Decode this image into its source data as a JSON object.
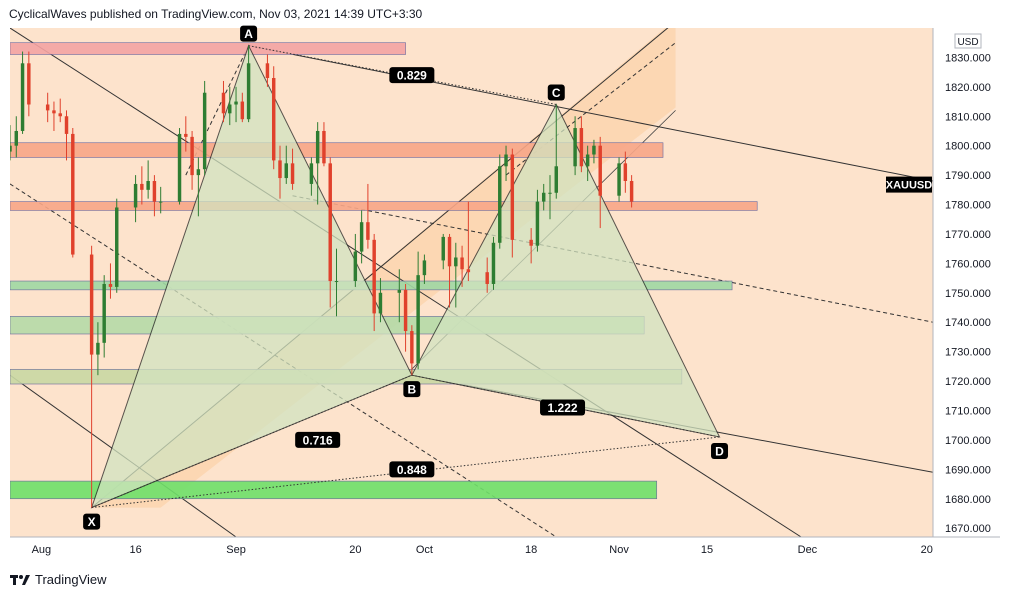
{
  "header": {
    "publish_line": "CyclicalWaves published on TradingView.com, Nov 03, 2021 14:39 UTC+3:30"
  },
  "footer": {
    "brand": "TradingView"
  },
  "chart_data": {
    "type": "candlestick",
    "symbol": "XAUUSD",
    "currency": "USD",
    "ylim": [
      1667,
      1840
    ],
    "y_ticks": [
      1670,
      1680,
      1690,
      1700,
      1710,
      1720,
      1730,
      1740,
      1750,
      1760,
      1770,
      1780,
      1790,
      1800,
      1810,
      1820,
      1830
    ],
    "y_tick_labels": [
      "1670.000",
      "1680.000",
      "1690.000",
      "1700.000",
      "1710.000",
      "1720.000",
      "1730.000",
      "1740.000",
      "1750.000",
      "1760.000",
      "1770.000",
      "1780.000",
      "1790.000",
      "1800.000",
      "1810.000",
      "1820.000",
      "1830.000"
    ],
    "x_range": [
      "2021-07-27",
      "2021-12-21"
    ],
    "x_ticks": [
      {
        "date": "2021-08-01",
        "label": "Aug"
      },
      {
        "date": "2021-08-16",
        "label": "16"
      },
      {
        "date": "2021-09-01",
        "label": "Sep"
      },
      {
        "date": "2021-09-20",
        "label": "20"
      },
      {
        "date": "2021-10-01",
        "label": "Oct"
      },
      {
        "date": "2021-10-18",
        "label": "18"
      },
      {
        "date": "2021-11-01",
        "label": "Nov"
      },
      {
        "date": "2021-11-15",
        "label": "15"
      },
      {
        "date": "2021-12-01",
        "label": "Dec"
      },
      {
        "date": "2021-12-20",
        "label": "20"
      }
    ],
    "last_price_label": "XAUUSD",
    "last_price": 1781,
    "harmonic_points": [
      {
        "label": "X",
        "date": "2021-08-09",
        "price": 1677
      },
      {
        "label": "A",
        "date": "2021-09-03",
        "price": 1834
      },
      {
        "label": "B",
        "date": "2021-09-29",
        "price": 1722
      },
      {
        "label": "C",
        "date": "2021-10-22",
        "price": 1814
      },
      {
        "label": "D",
        "date": "2021-11-17",
        "price": 1701
      }
    ],
    "ratios": [
      {
        "value": "0.829",
        "date": "2021-09-29",
        "price": 1824
      },
      {
        "value": "0.716",
        "date": "2021-09-14",
        "price": 1700
      },
      {
        "value": "1.222",
        "date": "2021-10-23",
        "price": 1711
      },
      {
        "value": "0.848",
        "date": "2021-09-29",
        "price": 1690
      }
    ],
    "zones": [
      {
        "from_date": "2021-07-27",
        "to_date": "2021-09-28",
        "low": 1831,
        "high": 1835,
        "color": "#f4a4a4"
      },
      {
        "from_date": "2021-07-27",
        "to_date": "2021-11-08",
        "low": 1796,
        "high": 1801,
        "color": "#f8a788"
      },
      {
        "from_date": "2021-07-27",
        "to_date": "2021-11-23",
        "low": 1778,
        "high": 1781,
        "color": "#f8a788"
      },
      {
        "from_date": "2021-07-27",
        "to_date": "2021-11-19",
        "low": 1751,
        "high": 1754,
        "color": "#9fd8a4"
      },
      {
        "from_date": "2021-07-27",
        "to_date": "2021-11-05",
        "low": 1736,
        "high": 1742,
        "color": "#b5dba8"
      },
      {
        "from_date": "2021-07-27",
        "to_date": "2021-11-11",
        "low": 1719,
        "high": 1724,
        "color": "#c9d9a4"
      },
      {
        "from_date": "2021-07-27",
        "to_date": "2021-11-07",
        "low": 1680,
        "high": 1686,
        "color": "#6fe06a"
      }
    ],
    "candles": [
      [
        "2021-07-27",
        1798,
        1807,
        1795,
        1800
      ],
      [
        "2021-07-28",
        1800,
        1810,
        1796,
        1805
      ],
      [
        "2021-07-29",
        1805,
        1832,
        1804,
        1828
      ],
      [
        "2021-07-30",
        1828,
        1832,
        1810,
        1814
      ],
      [
        "2021-08-02",
        1814,
        1818,
        1808,
        1812
      ],
      [
        "2021-08-03",
        1812,
        1815,
        1805,
        1811
      ],
      [
        "2021-08-04",
        1811,
        1816,
        1808,
        1810
      ],
      [
        "2021-08-05",
        1810,
        1812,
        1795,
        1804
      ],
      [
        "2021-08-06",
        1804,
        1806,
        1762,
        1763
      ],
      [
        "2021-08-09",
        1763,
        1766,
        1677,
        1729
      ],
      [
        "2021-08-10",
        1729,
        1740,
        1722,
        1733
      ],
      [
        "2021-08-11",
        1733,
        1756,
        1728,
        1753
      ],
      [
        "2021-08-12",
        1753,
        1760,
        1748,
        1752
      ],
      [
        "2021-08-13",
        1752,
        1782,
        1750,
        1779
      ],
      [
        "2021-08-16",
        1779,
        1790,
        1774,
        1787
      ],
      [
        "2021-08-17",
        1787,
        1793,
        1780,
        1785
      ],
      [
        "2021-08-18",
        1785,
        1795,
        1782,
        1788
      ],
      [
        "2021-08-19",
        1788,
        1790,
        1776,
        1781
      ],
      [
        "2021-08-20",
        1781,
        1786,
        1777,
        1781
      ],
      [
        "2021-08-23",
        1781,
        1806,
        1780,
        1804
      ],
      [
        "2021-08-24",
        1804,
        1810,
        1798,
        1803
      ],
      [
        "2021-08-25",
        1803,
        1805,
        1785,
        1790
      ],
      [
        "2021-08-26",
        1790,
        1796,
        1776,
        1792
      ],
      [
        "2021-08-27",
        1792,
        1822,
        1790,
        1818
      ],
      [
        "2021-08-30",
        1818,
        1822,
        1808,
        1811
      ],
      [
        "2021-08-31",
        1811,
        1820,
        1807,
        1814
      ],
      [
        "2021-09-01",
        1814,
        1820,
        1808,
        1815
      ],
      [
        "2021-09-02",
        1815,
        1818,
        1808,
        1809
      ],
      [
        "2021-09-03",
        1809,
        1834,
        1808,
        1828
      ],
      [
        "2021-09-06",
        1828,
        1831,
        1820,
        1823
      ],
      [
        "2021-09-07",
        1823,
        1827,
        1792,
        1795
      ],
      [
        "2021-09-08",
        1795,
        1800,
        1782,
        1789
      ],
      [
        "2021-09-09",
        1789,
        1800,
        1787,
        1794
      ],
      [
        "2021-09-10",
        1794,
        1799,
        1785,
        1787
      ],
      [
        "2021-09-13",
        1787,
        1796,
        1783,
        1794
      ],
      [
        "2021-09-14",
        1794,
        1808,
        1780,
        1805
      ],
      [
        "2021-09-15",
        1805,
        1808,
        1793,
        1794
      ],
      [
        "2021-09-16",
        1794,
        1796,
        1745,
        1754
      ],
      [
        "2021-09-17",
        1754,
        1765,
        1742,
        1754
      ],
      [
        "2021-09-20",
        1754,
        1770,
        1752,
        1764
      ],
      [
        "2021-09-21",
        1764,
        1778,
        1760,
        1774
      ],
      [
        "2021-09-22",
        1774,
        1787,
        1765,
        1768
      ],
      [
        "2021-09-23",
        1768,
        1770,
        1737,
        1743
      ],
      [
        "2021-09-24",
        1743,
        1755,
        1740,
        1750
      ],
      [
        "2021-09-27",
        1750,
        1758,
        1740,
        1751
      ],
      [
        "2021-09-28",
        1751,
        1753,
        1730,
        1737
      ],
      [
        "2021-09-29",
        1737,
        1739,
        1722,
        1726
      ],
      [
        "2021-09-30",
        1726,
        1764,
        1724,
        1756
      ],
      [
        "2021-10-01",
        1756,
        1763,
        1753,
        1761
      ],
      [
        "2021-10-04",
        1761,
        1770,
        1758,
        1769
      ],
      [
        "2021-10-05",
        1769,
        1770,
        1745,
        1759
      ],
      [
        "2021-10-06",
        1759,
        1767,
        1745,
        1762
      ],
      [
        "2021-10-07",
        1762,
        1766,
        1752,
        1758
      ],
      [
        "2021-10-08",
        1758,
        1781,
        1754,
        1757
      ],
      [
        "2021-10-11",
        1757,
        1762,
        1750,
        1753
      ],
      [
        "2021-10-12",
        1753,
        1769,
        1751,
        1767
      ],
      [
        "2021-10-13",
        1767,
        1797,
        1765,
        1793
      ],
      [
        "2021-10-14",
        1793,
        1800,
        1788,
        1797
      ],
      [
        "2021-10-15",
        1797,
        1799,
        1762,
        1768
      ],
      [
        "2021-10-18",
        1768,
        1772,
        1760,
        1766
      ],
      [
        "2021-10-19",
        1766,
        1785,
        1764,
        1781
      ],
      [
        "2021-10-20",
        1781,
        1787,
        1778,
        1784
      ],
      [
        "2021-10-21",
        1784,
        1790,
        1775,
        1784
      ],
      [
        "2021-10-22",
        1784,
        1814,
        1782,
        1793
      ],
      [
        "2021-10-25",
        1793,
        1810,
        1790,
        1806
      ],
      [
        "2021-10-26",
        1806,
        1810,
        1791,
        1793
      ],
      [
        "2021-10-27",
        1793,
        1800,
        1788,
        1797
      ],
      [
        "2021-10-28",
        1797,
        1802,
        1794,
        1800
      ],
      [
        "2021-10-29",
        1800,
        1803,
        1772,
        1783
      ],
      [
        "2021-11-01",
        1783,
        1796,
        1781,
        1794
      ],
      [
        "2021-11-02",
        1794,
        1798,
        1784,
        1788
      ],
      [
        "2021-11-03",
        1788,
        1790,
        1779,
        1781
      ]
    ]
  },
  "style": {
    "background": "#fde3cc",
    "inner_zone": "#fbd3ad",
    "up_color": "#2e7d32",
    "down_color": "#e0412c",
    "triangle_fill": "#d2e3c0",
    "label_bg": "#000000"
  }
}
